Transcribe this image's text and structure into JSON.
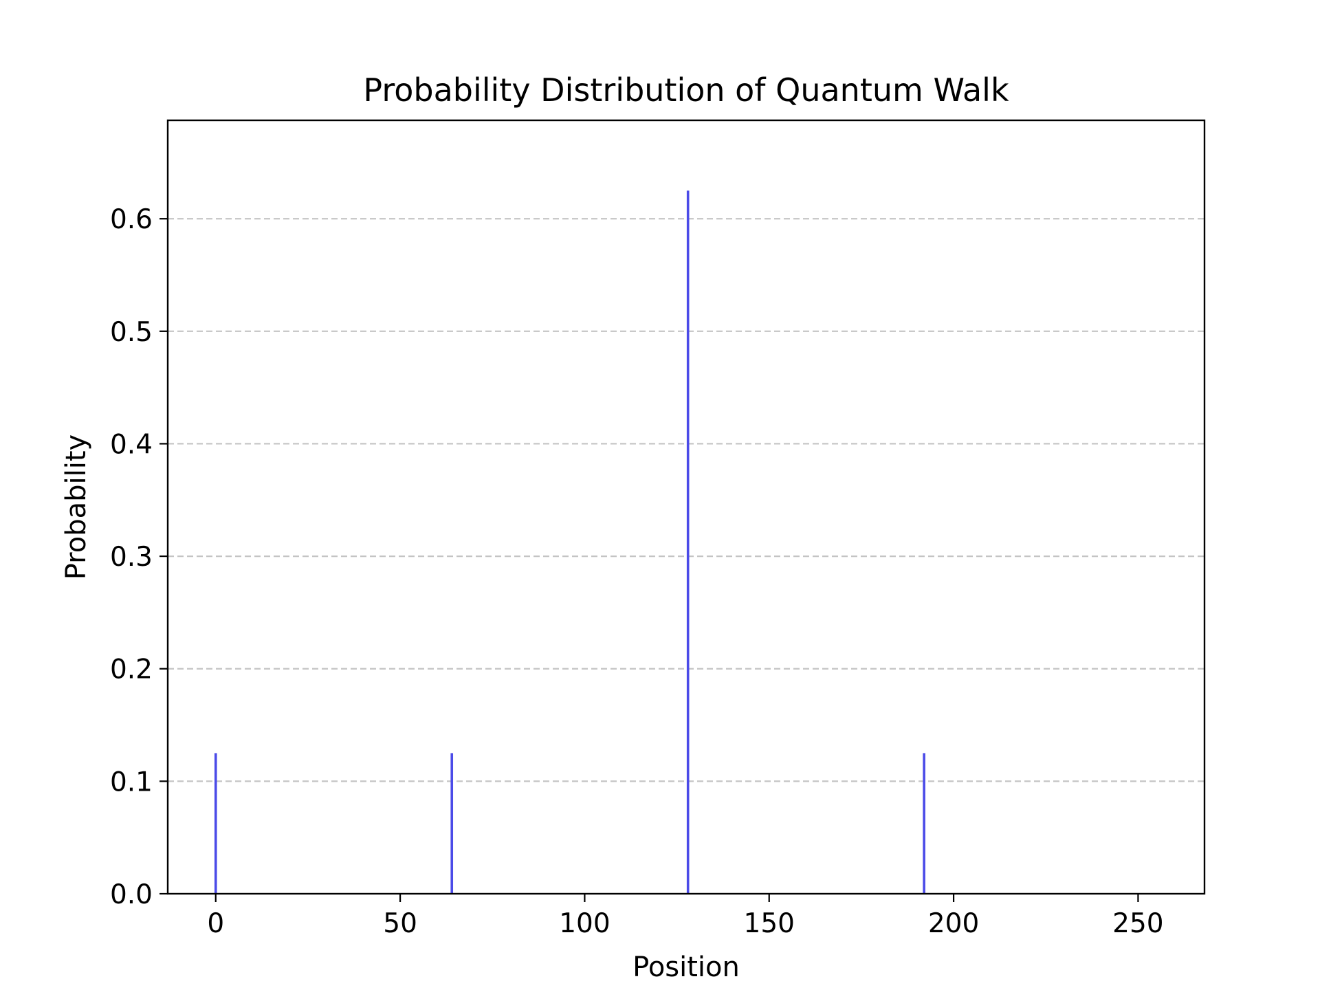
{
  "chart_data": {
    "type": "bar",
    "title": "Probability Distribution of Quantum Walk",
    "xlabel": "Position",
    "ylabel": "Probability",
    "x": [
      0,
      64,
      128,
      192
    ],
    "values": [
      0.125,
      0.125,
      0.625,
      0.125
    ],
    "xlim": [
      -13,
      268
    ],
    "ylim": [
      0,
      0.6875
    ],
    "xticks": [
      0,
      50,
      100,
      150,
      200,
      250
    ],
    "xtick_labels": [
      "0",
      "50",
      "100",
      "150",
      "200",
      "250"
    ],
    "yticks": [
      0.0,
      0.1,
      0.2,
      0.3,
      0.4,
      0.5,
      0.6
    ],
    "ytick_labels": [
      "0.0",
      "0.1",
      "0.2",
      "0.3",
      "0.4",
      "0.5",
      "0.6"
    ],
    "grid": {
      "axis": "y",
      "style": "dashed",
      "visible": true
    },
    "colors": {
      "bars": "#4b4be8",
      "grid": "#c4c4c4",
      "axes": "#000000"
    }
  }
}
